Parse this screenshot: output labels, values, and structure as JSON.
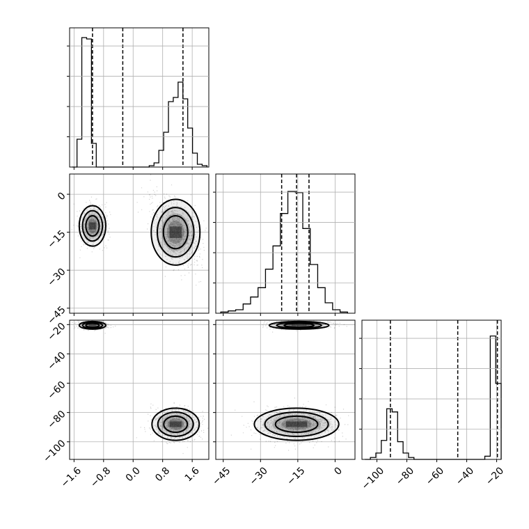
{
  "figure": {
    "type": "corner-plot",
    "grid": true,
    "hist_quantile_lines": "dashed"
  },
  "chart_data": [
    {
      "type": "histogram",
      "panel": "hist-p0",
      "bin_range": [
        -1.65,
        2.0
      ],
      "counts": [
        0,
        20,
        93,
        92,
        17,
        0,
        0,
        0,
        0,
        0,
        0,
        0,
        0,
        0,
        0,
        0,
        1,
        3,
        12,
        25,
        47,
        50,
        61,
        49,
        28,
        10,
        2,
        1
      ],
      "quantiles": [
        -1.1,
        -0.28,
        1.35
      ],
      "xlim": [
        -1.72,
        2.05
      ],
      "x_ticks": [
        -1.6,
        -0.8,
        0.0,
        0.8,
        1.6
      ],
      "x_tick_labels": [],
      "y_max": 100
    },
    {
      "type": "histogram",
      "panel": "hist-p1",
      "bin_range": [
        -46,
        5
      ],
      "counts": [
        1,
        2,
        3,
        8,
        14,
        22,
        38,
        58,
        86,
        105,
        104,
        73,
        42,
        22,
        9,
        3,
        1
      ],
      "quantiles": [
        -21.5,
        -15.5,
        -10.5
      ],
      "xlim": [
        -48,
        8
      ],
      "x_ticks": [
        -45,
        -30,
        -15,
        0
      ],
      "x_tick_labels": [],
      "y_max": 120
    },
    {
      "type": "histogram",
      "panel": "hist-p2",
      "bin_range": [
        -108,
        -17
      ],
      "counts": [
        0,
        3,
        10,
        30,
        80,
        75,
        28,
        10,
        3,
        0,
        0,
        0,
        0,
        0,
        0,
        0,
        0,
        0,
        0,
        0,
        0,
        0,
        5,
        195,
        120
      ],
      "quantiles": [
        -91,
        -46,
        -19.5
      ],
      "xlim": [
        -110,
        -17
      ],
      "x_ticks": [
        -100,
        -80,
        -60,
        -40,
        -20
      ],
      "x_tick_labels": [
        "−100",
        "−80",
        "−60",
        "−40",
        "−20"
      ],
      "y_max": 220
    },
    {
      "type": "scatter",
      "panel": "scatter-p0-p1",
      "blobs": [
        {
          "cx": -1.1,
          "cy": -12.5,
          "sx": 0.18,
          "sy": 4.0,
          "weight": 0.45
        },
        {
          "cx": 1.15,
          "cy": -15.0,
          "sx": 0.33,
          "sy": 6.5,
          "weight": 0.55,
          "tilt": -0.45
        }
      ],
      "xlim": [
        -1.72,
        2.05
      ],
      "ylim": [
        -47,
        8
      ],
      "x_ticks": [
        -1.6,
        -0.8,
        0.0,
        0.8,
        1.6
      ],
      "x_tick_labels": [],
      "y_ticks": [
        0,
        -15,
        -30,
        -45
      ],
      "y_tick_labels": [
        "0",
        "−15",
        "−30",
        "−45"
      ]
    },
    {
      "type": "scatter",
      "panel": "scatter-p0-p2",
      "blobs": [
        {
          "cx": -1.1,
          "cy": -20.5,
          "sx": 0.18,
          "sy": 1.3,
          "weight": 0.45
        },
        {
          "cx": 1.15,
          "cy": -88.0,
          "sx": 0.32,
          "sy": 5.5,
          "weight": 0.55
        }
      ],
      "xlim": [
        -1.72,
        2.05
      ],
      "ylim": [
        -112,
        -17
      ],
      "x_ticks": [
        -1.6,
        -0.8,
        0.0,
        0.8,
        1.6
      ],
      "x_tick_labels": [
        "−1.6",
        "−0.8",
        "0.0",
        "0.8",
        "1.6"
      ],
      "y_ticks": [
        -20,
        -40,
        -60,
        -80,
        -100
      ],
      "y_tick_labels": [
        "−20",
        "−40",
        "−60",
        "−80",
        "−100"
      ]
    },
    {
      "type": "scatter",
      "panel": "scatter-p1-p2",
      "blobs": [
        {
          "cx": -14.5,
          "cy": -20.5,
          "sx": 6.0,
          "sy": 1.3,
          "weight": 0.45
        },
        {
          "cx": -15.5,
          "cy": -88.0,
          "sx": 8.5,
          "sy": 5.5,
          "weight": 0.55
        }
      ],
      "xlim": [
        -48,
        8
      ],
      "ylim": [
        -112,
        -17
      ],
      "x_ticks": [
        -45,
        -30,
        -15,
        0
      ],
      "x_tick_labels": [
        "−45",
        "−30",
        "−15",
        "0"
      ],
      "y_ticks": [
        -20,
        -40,
        -60,
        -80,
        -100
      ],
      "y_tick_labels": []
    }
  ]
}
